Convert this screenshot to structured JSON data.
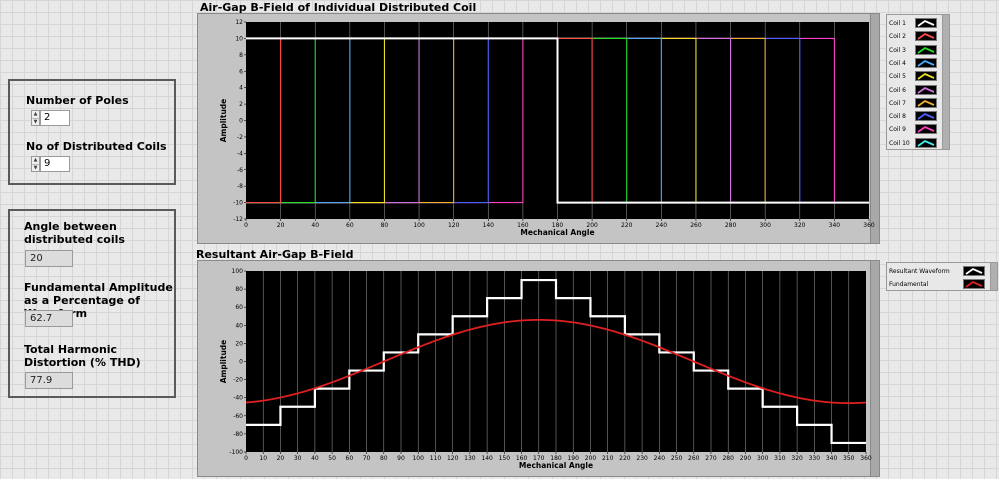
{
  "controls": {
    "poles_label": "Number of Poles",
    "poles_value": "2",
    "coils_label": "No of Distributed Coils",
    "coils_value": "9"
  },
  "indicators": {
    "angle_label": "Angle between distributed coils",
    "angle_value": "20",
    "fundamental_label": "Fundamental Amplitude as a Percentage of Waveform",
    "fundamental_value": "62.7",
    "thd_label": "Total Harmonic Distortion (% THD)",
    "thd_value": "77.9"
  },
  "colors": {
    "plot_bg": "#000000",
    "resultant": "#ffffff",
    "fundamental": "#e02020"
  },
  "chart_data": [
    {
      "type": "line",
      "title": "Air-Gap B-Field of Individual Distributed Coil",
      "xlabel": "Mechanical Angle",
      "ylabel": "Amplitude",
      "xlim": [
        0,
        360
      ],
      "ylim": [
        -12,
        12
      ],
      "xticks": [
        0,
        20,
        40,
        60,
        80,
        100,
        120,
        140,
        160,
        180,
        200,
        220,
        240,
        260,
        280,
        300,
        320,
        340,
        360
      ],
      "yticks": [
        12,
        10,
        8,
        6,
        4,
        2,
        0,
        -2,
        -4,
        -6,
        -8,
        -10,
        -12
      ],
      "grid": true,
      "legend_position": "right",
      "note": "Coil k is +10 on [20(k-1), 20(k-1)+180) and -10 elsewhere",
      "series": [
        {
          "name": "Coil 1",
          "color": "#ffffff",
          "shift": 0
        },
        {
          "name": "Coil 2",
          "color": "#ff4a4a",
          "shift": 20
        },
        {
          "name": "Coil 3",
          "color": "#22dd22",
          "shift": 40
        },
        {
          "name": "Coil 4",
          "color": "#4aa8ff",
          "shift": 60
        },
        {
          "name": "Coil 5",
          "color": "#f0e020",
          "shift": 80
        },
        {
          "name": "Coil 6",
          "color": "#d070e0",
          "shift": 100
        },
        {
          "name": "Coil 7",
          "color": "#f0b030",
          "shift": 120
        },
        {
          "name": "Coil 8",
          "color": "#5060ff",
          "shift": 140
        },
        {
          "name": "Coil 9",
          "color": "#ff40c0",
          "shift": 160
        },
        {
          "name": "Coil 10",
          "color": "#40f0f0",
          "shift": null
        }
      ],
      "amplitude": 10
    },
    {
      "type": "line",
      "title": "Resultant Air-Gap B-Field",
      "xlabel": "Mechanical Angle",
      "ylabel": "Amplitude",
      "xlim": [
        0,
        360
      ],
      "ylim": [
        -100,
        100
      ],
      "xticks": [
        0,
        10,
        20,
        30,
        40,
        50,
        60,
        70,
        80,
        90,
        100,
        110,
        120,
        130,
        140,
        150,
        160,
        170,
        180,
        190,
        200,
        210,
        220,
        230,
        240,
        250,
        260,
        270,
        280,
        290,
        300,
        310,
        320,
        330,
        340,
        350,
        360
      ],
      "yticks": [
        100,
        80,
        60,
        40,
        20,
        0,
        -20,
        -40,
        -60,
        -80,
        -100
      ],
      "grid": true,
      "legend_position": "right",
      "series": [
        {
          "name": "Resultant Waveform",
          "color": "#ffffff",
          "step_x": [
            0,
            20,
            40,
            60,
            80,
            100,
            120,
            140,
            160,
            180,
            200,
            220,
            240,
            260,
            280,
            300,
            320,
            340,
            360
          ],
          "step_y": [
            -70,
            -50,
            -30,
            -10,
            10,
            30,
            50,
            70,
            90,
            70,
            50,
            30,
            10,
            -10,
            -30,
            -50,
            -70,
            -90
          ]
        },
        {
          "name": "Fundamental",
          "color": "#e02020",
          "form": "sine",
          "amplitude": 46,
          "peak_at": 170
        }
      ]
    }
  ]
}
